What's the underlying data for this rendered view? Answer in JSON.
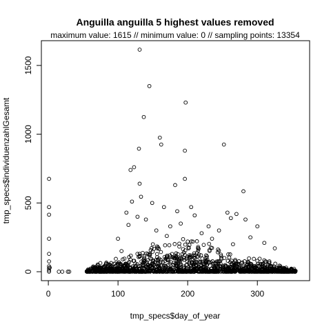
{
  "chart_data": {
    "type": "scatter",
    "title": "Anguilla anguilla  5 highest values removed",
    "subtitle": "maximum value: 1615  //  minimum value: 0  // sampling points: 13354",
    "xlabel": "tmp_specs$day_of_year",
    "ylabel": "tmp_specs$individuenzahlGesamt",
    "xlim": [
      -10,
      375
    ],
    "ylim": [
      -65,
      1680
    ],
    "x_ticks": [
      0,
      100,
      200,
      300
    ],
    "y_ticks": [
      0,
      500,
      1000,
      1500
    ],
    "x_tick_labels": [
      "0",
      "100",
      "200",
      "300"
    ],
    "y_tick_labels": [
      "0",
      "500",
      "1000",
      "1500"
    ],
    "grid": false,
    "marker": "open-circle",
    "marker_color": "#000000",
    "points": [
      [
        1,
        675
      ],
      [
        1,
        470
      ],
      [
        1,
        415
      ],
      [
        1,
        240
      ],
      [
        1,
        130
      ],
      [
        1,
        75
      ],
      [
        1,
        40
      ],
      [
        1,
        25
      ],
      [
        1,
        10
      ],
      [
        1,
        0
      ],
      [
        2,
        30
      ],
      [
        15,
        0
      ],
      [
        20,
        0
      ],
      [
        28,
        0
      ],
      [
        30,
        0
      ],
      [
        131,
        1615
      ],
      [
        145,
        1350
      ],
      [
        197,
        1230
      ],
      [
        137,
        1125
      ],
      [
        160,
        975
      ],
      [
        162,
        925
      ],
      [
        130,
        895
      ],
      [
        196,
        880
      ],
      [
        252,
        925
      ],
      [
        123,
        760
      ],
      [
        118,
        740
      ],
      [
        131,
        640
      ],
      [
        133,
        545
      ],
      [
        196,
        675
      ],
      [
        182,
        630
      ],
      [
        280,
        585
      ],
      [
        120,
        510
      ],
      [
        149,
        500
      ],
      [
        166,
        470
      ],
      [
        185,
        440
      ],
      [
        205,
        470
      ],
      [
        210,
        410
      ],
      [
        112,
        430
      ],
      [
        128,
        400
      ],
      [
        257,
        430
      ],
      [
        270,
        420
      ],
      [
        283,
        380
      ],
      [
        230,
        330
      ],
      [
        245,
        300
      ],
      [
        262,
        390
      ],
      [
        300,
        330
      ],
      [
        175,
        330
      ],
      [
        140,
        380
      ],
      [
        115,
        340
      ],
      [
        190,
        350
      ],
      [
        100,
        240
      ],
      [
        220,
        280
      ],
      [
        235,
        240
      ],
      [
        290,
        250
      ],
      [
        310,
        210
      ],
      [
        325,
        170
      ],
      [
        170,
        260
      ],
      [
        155,
        300
      ],
      [
        150,
        200
      ],
      [
        200,
        220
      ],
      [
        265,
        200
      ],
      [
        215,
        180
      ],
      [
        105,
        150
      ]
    ],
    "dense_cloud": {
      "x_range": [
        55,
        355
      ],
      "peak_day": 200,
      "description": "dense band of points near zero"
    }
  }
}
